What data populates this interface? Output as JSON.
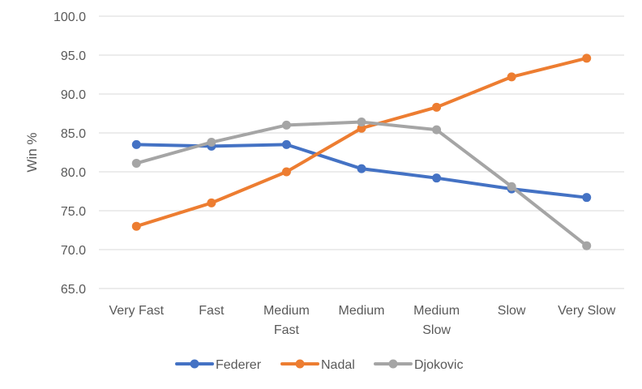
{
  "chart_data": {
    "type": "line",
    "title": "",
    "xlabel": "",
    "ylabel": "Win %",
    "ylim": [
      65.0,
      100.0
    ],
    "y_ticks": [
      "65.0",
      "70.0",
      "75.0",
      "80.0",
      "85.0",
      "90.0",
      "95.0",
      "100.0"
    ],
    "y_tick_values": [
      65,
      70,
      75,
      80,
      85,
      90,
      95,
      100
    ],
    "categories": [
      "Very Fast",
      "Fast",
      "Medium Fast",
      "Medium",
      "Medium Slow",
      "Slow",
      "Very Slow"
    ],
    "category_lines": [
      [
        "Very Fast"
      ],
      [
        "Fast"
      ],
      [
        "Medium",
        "Fast"
      ],
      [
        "Medium"
      ],
      [
        "Medium",
        "Slow"
      ],
      [
        "Slow"
      ],
      [
        "Very Slow"
      ]
    ],
    "grid": true,
    "legend_position": "bottom",
    "series": [
      {
        "name": "Federer",
        "color": "#4472c4",
        "values": [
          83.5,
          83.3,
          83.5,
          80.4,
          79.2,
          77.8,
          76.7
        ]
      },
      {
        "name": "Nadal",
        "color": "#ed7d31",
        "values": [
          73.0,
          76.0,
          80.0,
          85.6,
          88.3,
          92.2,
          94.6
        ]
      },
      {
        "name": "Djokovic",
        "color": "#a5a5a5",
        "values": [
          81.1,
          83.8,
          86.0,
          86.4,
          85.4,
          78.1,
          70.5
        ]
      }
    ]
  }
}
